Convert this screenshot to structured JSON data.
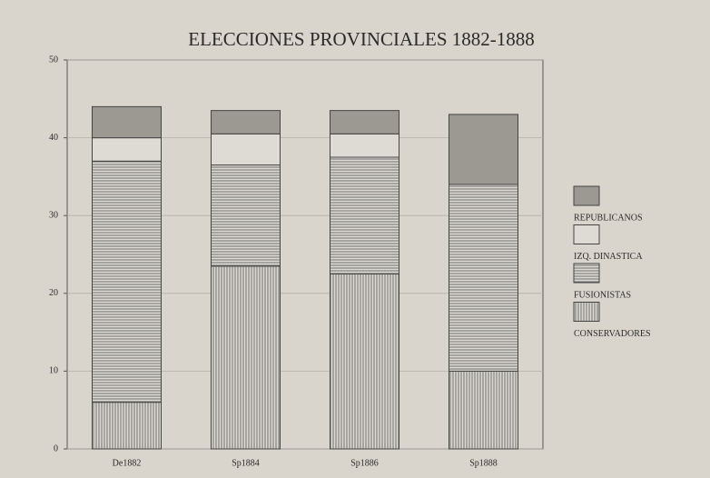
{
  "chart_data": {
    "type": "stacked_bar",
    "title": "ELECCIONES PROVINCIALES 1882-1888",
    "categories": [
      "De1882",
      "Sp1884",
      "Sp1886",
      "Sp1888"
    ],
    "series": [
      {
        "name": "CONSERVADORES",
        "color": "#8a8a8a",
        "pattern": "vertical",
        "values": [
          6,
          23.5,
          22.5,
          10
        ]
      },
      {
        "name": "FUSIONISTAS",
        "color": "#8a8a8a",
        "pattern": "horizontal",
        "values": [
          31,
          13,
          15,
          24
        ]
      },
      {
        "name": "IZQ. DINASTICA",
        "color": "#dedbd4",
        "pattern": "solid",
        "values": [
          3,
          4,
          3,
          0
        ]
      },
      {
        "name": "REPUBLICANOS",
        "color": "#9c9892",
        "pattern": "solid",
        "values": [
          4,
          3,
          3,
          9
        ]
      }
    ],
    "ylim": [
      0,
      50
    ],
    "yticks": [
      0,
      10,
      20,
      30,
      40,
      50
    ],
    "grid": true,
    "legend": "right"
  }
}
